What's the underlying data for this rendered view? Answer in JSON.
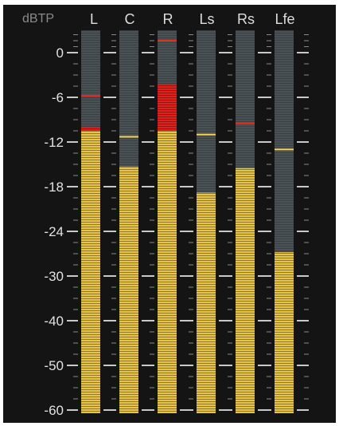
{
  "meter": {
    "unit_label": "dBTP",
    "scale_db": [
      0,
      -6,
      -12,
      -18,
      -24,
      -30,
      -40,
      -50,
      -60
    ],
    "scale_labels": [
      "0",
      "-6",
      "-12",
      "-18",
      "-24",
      "-30",
      "-40",
      "-50",
      "-60"
    ],
    "channels": [
      {
        "name": "L",
        "level_db": -10.5,
        "peak_hold_db": -5.8,
        "red_top_db": -10.0
      },
      {
        "name": "C",
        "level_db": -15.3,
        "peak_hold_db": -11.3,
        "red_top_db": null
      },
      {
        "name": "R",
        "level_db": -10.5,
        "peak_hold_db": 1.5,
        "red_top_db": -4.3
      },
      {
        "name": "Ls",
        "level_db": -18.8,
        "peak_hold_db": -11.0,
        "red_top_db": null
      },
      {
        "name": "Rs",
        "level_db": -15.5,
        "peak_hold_db": -9.5,
        "red_top_db": null
      },
      {
        "name": "Lfe",
        "level_db": -26.8,
        "peak_hold_db": -13.0,
        "red_top_db": null
      }
    ],
    "colors": {
      "background": "#141414",
      "level_fill": "#e8c34a",
      "over_fill": "#e0201c",
      "track": "#4a5154",
      "peak_hold_yellow": "#f3d457",
      "peak_hold_red": "#ee2a1f",
      "tick": "#c8c8c8"
    }
  }
}
